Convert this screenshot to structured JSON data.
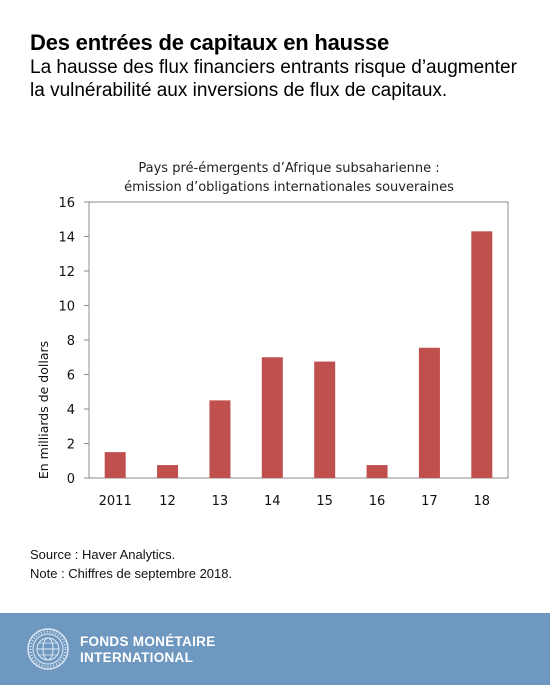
{
  "headline": "Des entrées de capitaux en hausse",
  "subheadline": "La hausse des flux financiers entrants risque d’augmenter la vulnérabilité aux inversions de flux de capitaux.",
  "chart_data": {
    "type": "bar",
    "title": "Pays pré-émergents d’Afrique subsaharienne :",
    "subtitle": "émission d’obligations internationales souveraines",
    "xlabel": "",
    "ylabel": "En milliards de dollars",
    "categories": [
      "2011",
      "12",
      "13",
      "14",
      "15",
      "16",
      "17",
      "18"
    ],
    "values": [
      1.5,
      0.75,
      4.5,
      7.0,
      6.75,
      0.75,
      7.55,
      14.3
    ],
    "ylim": [
      0,
      16
    ],
    "yticks": [
      0,
      2,
      4,
      6,
      8,
      10,
      12,
      14,
      16
    ],
    "grid": false,
    "legend": "none",
    "bar_color": "#c0504d"
  },
  "notes": {
    "source": "Source : Haver Analytics.",
    "note": "Note : Chiffres de septembre 2018."
  },
  "footer": {
    "organization": "Fonds monétaire international",
    "background_color": "#6f98c0",
    "logo_icon": "imf-seal-icon"
  }
}
